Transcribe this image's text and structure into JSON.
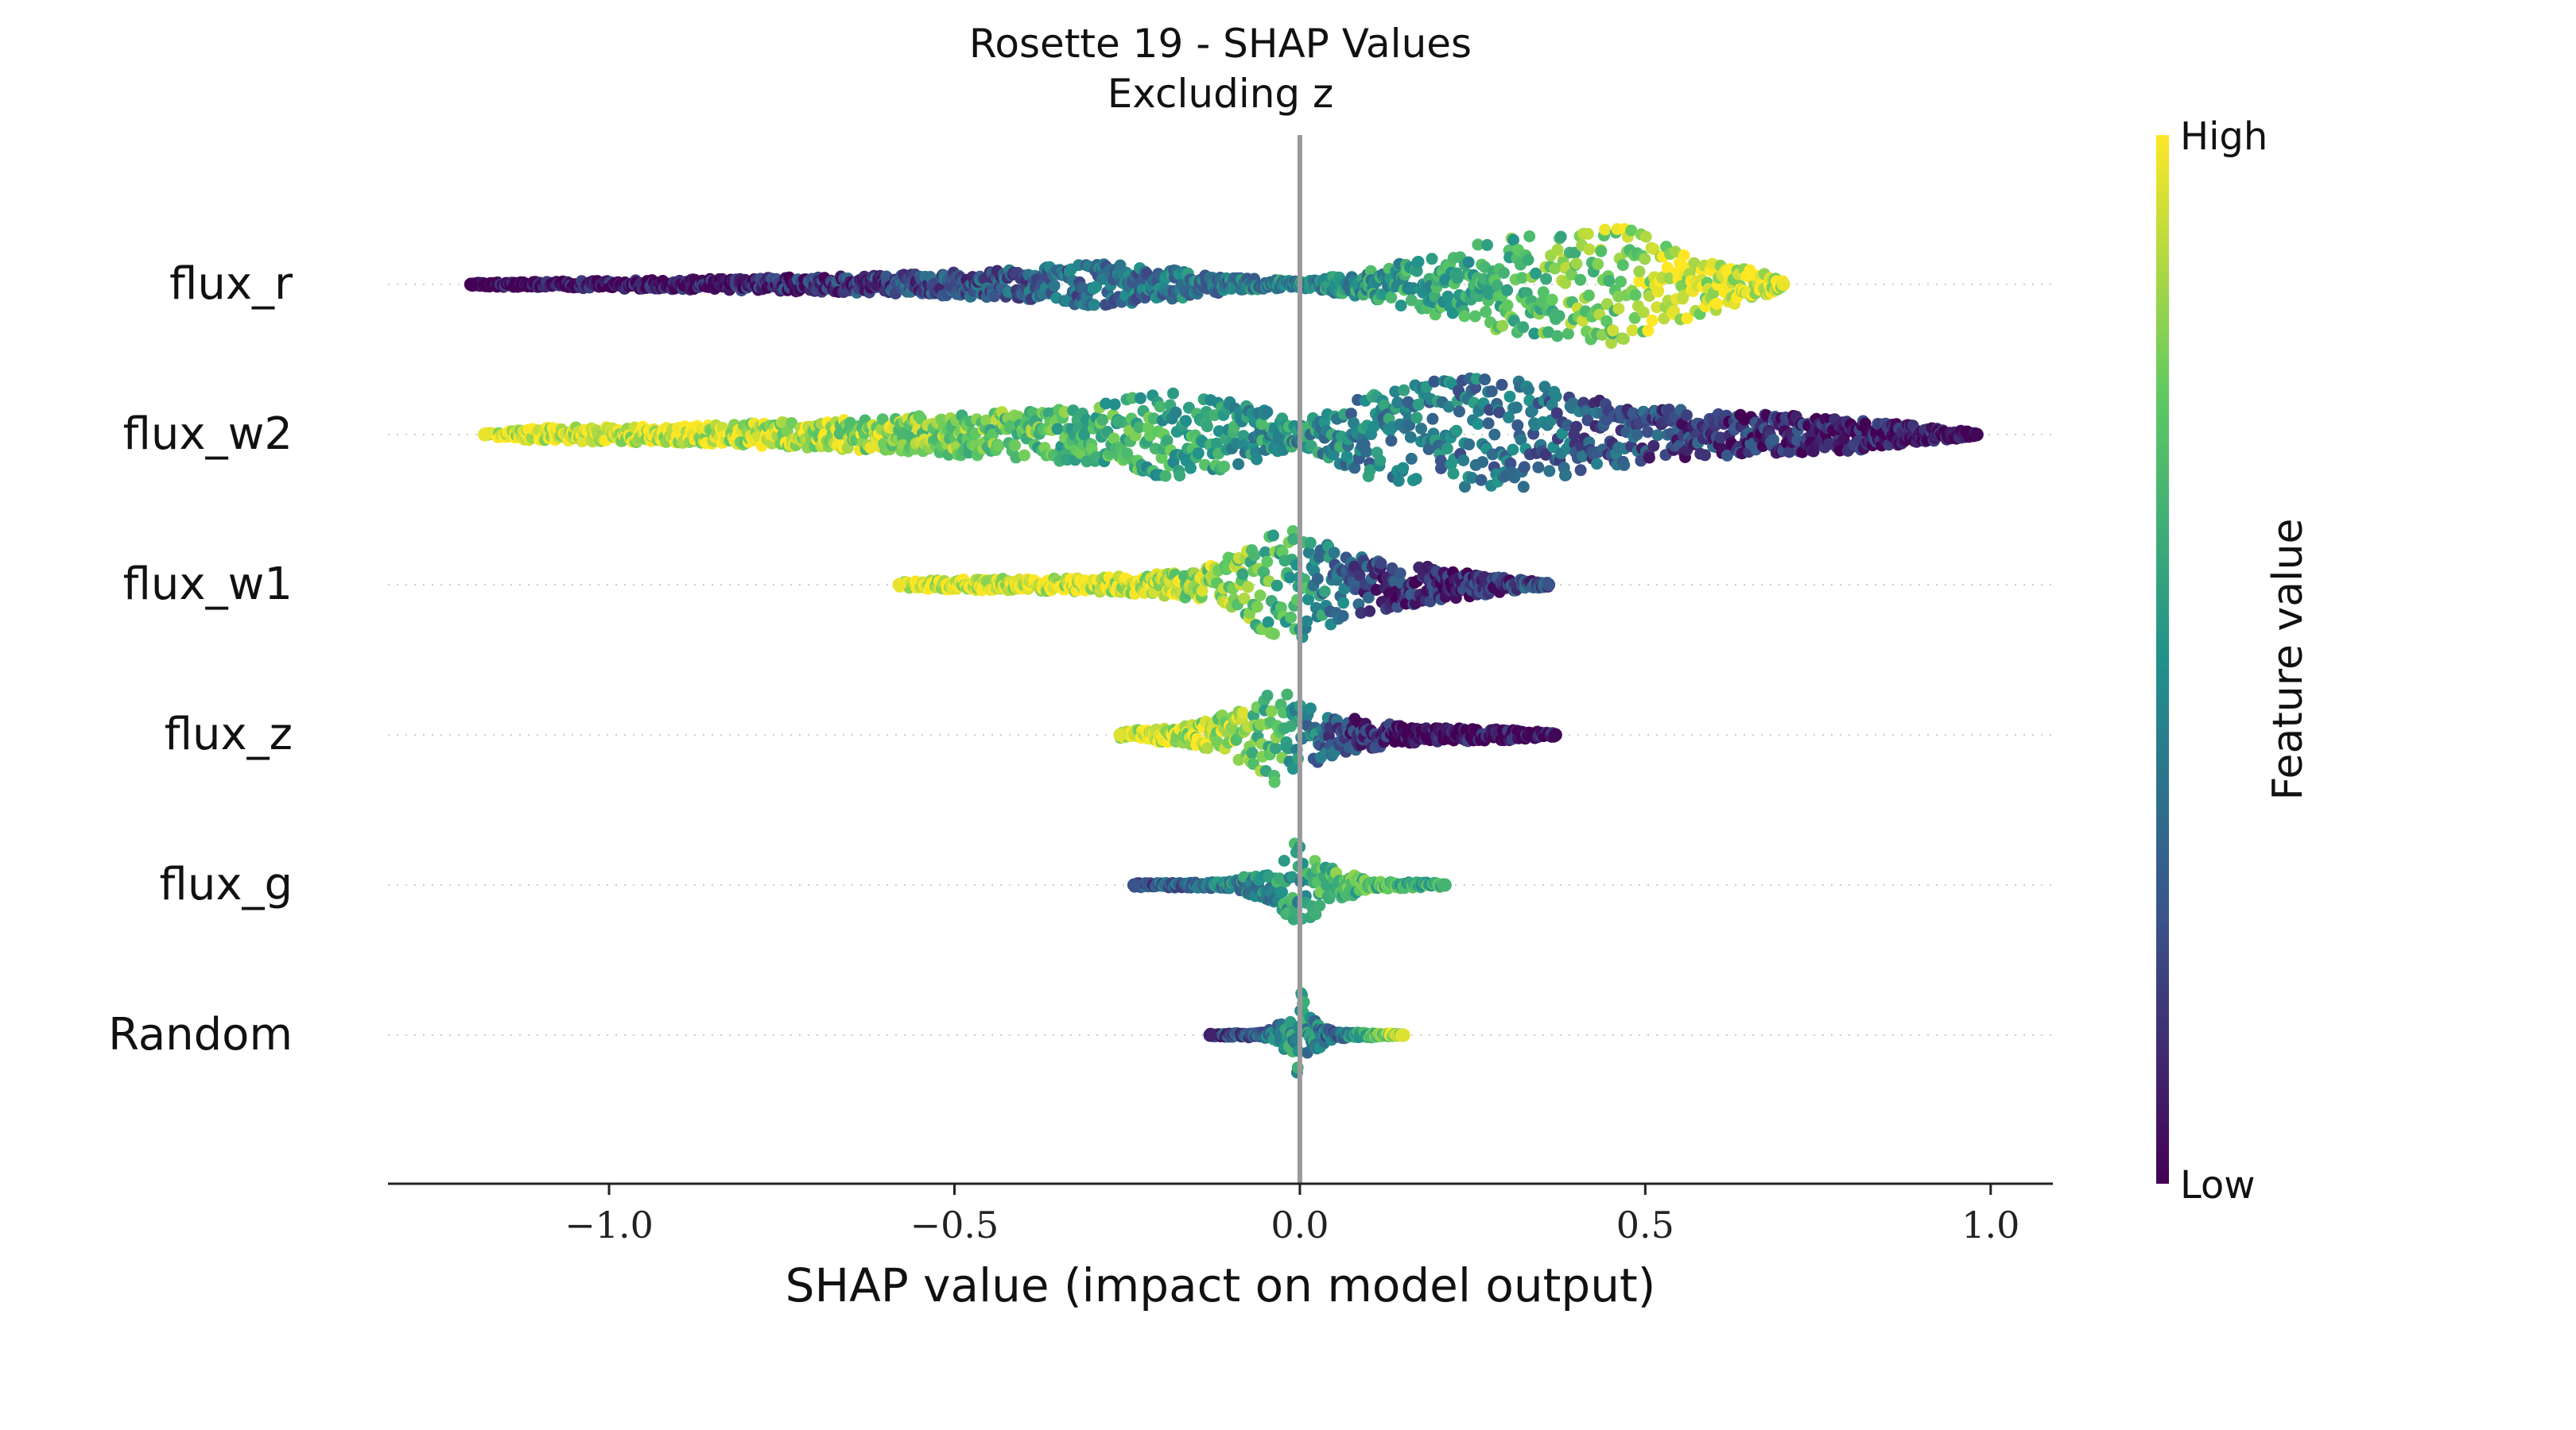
{
  "chart_data": {
    "type": "scatter",
    "subtype": "shap-beeswarm",
    "title": "Rosette 19 - SHAP Values",
    "subtitle": "Excluding z",
    "xlabel": "SHAP value (impact on model output)",
    "ylabel": "",
    "xlim": [
      -1.32,
      1.09
    ],
    "x_ticks": [
      -1.0,
      -0.5,
      0.0,
      0.5,
      1.0
    ],
    "x_tick_labels": [
      "−1.0",
      "−0.5",
      "0.0",
      "0.5",
      "1.0"
    ],
    "zero_line": 0.0,
    "grid": false,
    "colorbar": {
      "label": "Feature value",
      "high_label": "High",
      "low_label": "Low",
      "colormap": "viridis",
      "colors": [
        "#440154",
        "#3b528b",
        "#21918c",
        "#5ec962",
        "#fde725"
      ]
    },
    "features": [
      {
        "name": "flux_r",
        "min": -1.2,
        "max": 0.7,
        "density": [
          [
            -1.2,
            0.03
          ],
          [
            -1.0,
            0.06
          ],
          [
            -0.8,
            0.09
          ],
          [
            -0.6,
            0.13
          ],
          [
            -0.4,
            0.22
          ],
          [
            -0.3,
            0.32
          ],
          [
            -0.2,
            0.24
          ],
          [
            -0.1,
            0.1
          ],
          [
            0.0,
            0.05
          ],
          [
            0.1,
            0.2
          ],
          [
            0.2,
            0.45
          ],
          [
            0.3,
            0.7
          ],
          [
            0.4,
            0.8
          ],
          [
            0.45,
            0.9
          ],
          [
            0.55,
            0.55
          ],
          [
            0.65,
            0.22
          ],
          [
            0.7,
            0.08
          ]
        ],
        "color_trend": [
          [
            -1.2,
            0.0
          ],
          [
            -0.9,
            0.05
          ],
          [
            -0.6,
            0.2
          ],
          [
            -0.3,
            0.35
          ],
          [
            0.0,
            0.45
          ],
          [
            0.2,
            0.6
          ],
          [
            0.4,
            0.75
          ],
          [
            0.55,
            0.92
          ],
          [
            0.7,
            0.97
          ]
        ]
      },
      {
        "name": "flux_w2",
        "min": -1.18,
        "max": 0.98,
        "density": [
          [
            -1.18,
            0.02
          ],
          [
            -1.1,
            0.1
          ],
          [
            -0.9,
            0.12
          ],
          [
            -0.7,
            0.2
          ],
          [
            -0.5,
            0.3
          ],
          [
            -0.3,
            0.42
          ],
          [
            -0.2,
            0.62
          ],
          [
            -0.1,
            0.55
          ],
          [
            0.0,
            0.15
          ],
          [
            0.1,
            0.65
          ],
          [
            0.2,
            0.8
          ],
          [
            0.3,
            0.88
          ],
          [
            0.4,
            0.55
          ],
          [
            0.6,
            0.32
          ],
          [
            0.8,
            0.24
          ],
          [
            0.9,
            0.12
          ],
          [
            0.98,
            0.03
          ]
        ],
        "color_trend": [
          [
            -1.18,
            0.97
          ],
          [
            -0.9,
            0.95
          ],
          [
            -0.6,
            0.82
          ],
          [
            -0.3,
            0.68
          ],
          [
            -0.1,
            0.55
          ],
          [
            0.1,
            0.45
          ],
          [
            0.3,
            0.38
          ],
          [
            0.5,
            0.22
          ],
          [
            0.7,
            0.12
          ],
          [
            0.98,
            0.02
          ]
        ]
      },
      {
        "name": "flux_w1",
        "min": -0.58,
        "max": 0.36,
        "density": [
          [
            -0.58,
            0.04
          ],
          [
            -0.5,
            0.08
          ],
          [
            -0.3,
            0.1
          ],
          [
            -0.15,
            0.2
          ],
          [
            -0.08,
            0.55
          ],
          [
            -0.03,
            0.8
          ],
          [
            0.0,
            0.85
          ],
          [
            0.05,
            0.55
          ],
          [
            0.1,
            0.4
          ],
          [
            0.2,
            0.25
          ],
          [
            0.3,
            0.1
          ],
          [
            0.36,
            0.03
          ]
        ],
        "color_trend": [
          [
            -0.58,
            0.97
          ],
          [
            -0.3,
            0.95
          ],
          [
            -0.1,
            0.8
          ],
          [
            0.0,
            0.6
          ],
          [
            0.1,
            0.2
          ],
          [
            0.2,
            0.1
          ],
          [
            0.36,
            0.25
          ]
        ]
      },
      {
        "name": "flux_z",
        "min": -0.26,
        "max": 0.37,
        "density": [
          [
            -0.26,
            0.05
          ],
          [
            -0.15,
            0.15
          ],
          [
            -0.08,
            0.4
          ],
          [
            -0.04,
            0.75
          ],
          [
            0.0,
            0.55
          ],
          [
            0.05,
            0.3
          ],
          [
            0.15,
            0.12
          ],
          [
            0.3,
            0.08
          ],
          [
            0.37,
            0.03
          ]
        ],
        "color_trend": [
          [
            -0.26,
            0.95
          ],
          [
            -0.1,
            0.85
          ],
          [
            -0.03,
            0.65
          ],
          [
            0.05,
            0.25
          ],
          [
            0.15,
            0.05
          ],
          [
            0.37,
            0.02
          ]
        ]
      },
      {
        "name": "flux_g",
        "min": -0.24,
        "max": 0.21,
        "density": [
          [
            -0.24,
            0.03
          ],
          [
            -0.1,
            0.05
          ],
          [
            -0.03,
            0.3
          ],
          [
            0.0,
            0.75
          ],
          [
            0.03,
            0.35
          ],
          [
            0.1,
            0.06
          ],
          [
            0.21,
            0.03
          ]
        ],
        "color_trend": [
          [
            -0.24,
            0.25
          ],
          [
            -0.05,
            0.5
          ],
          [
            0.0,
            0.55
          ],
          [
            0.05,
            0.7
          ],
          [
            0.21,
            0.65
          ]
        ]
      },
      {
        "name": "Random",
        "min": -0.13,
        "max": 0.15,
        "density": [
          [
            -0.13,
            0.02
          ],
          [
            -0.05,
            0.04
          ],
          [
            -0.01,
            0.3
          ],
          [
            0.0,
            0.8
          ],
          [
            0.01,
            0.3
          ],
          [
            0.05,
            0.05
          ],
          [
            0.15,
            0.02
          ]
        ],
        "color_trend": [
          [
            -0.13,
            0.1
          ],
          [
            0.0,
            0.55
          ],
          [
            0.05,
            0.3
          ],
          [
            0.15,
            0.95
          ]
        ]
      }
    ]
  }
}
